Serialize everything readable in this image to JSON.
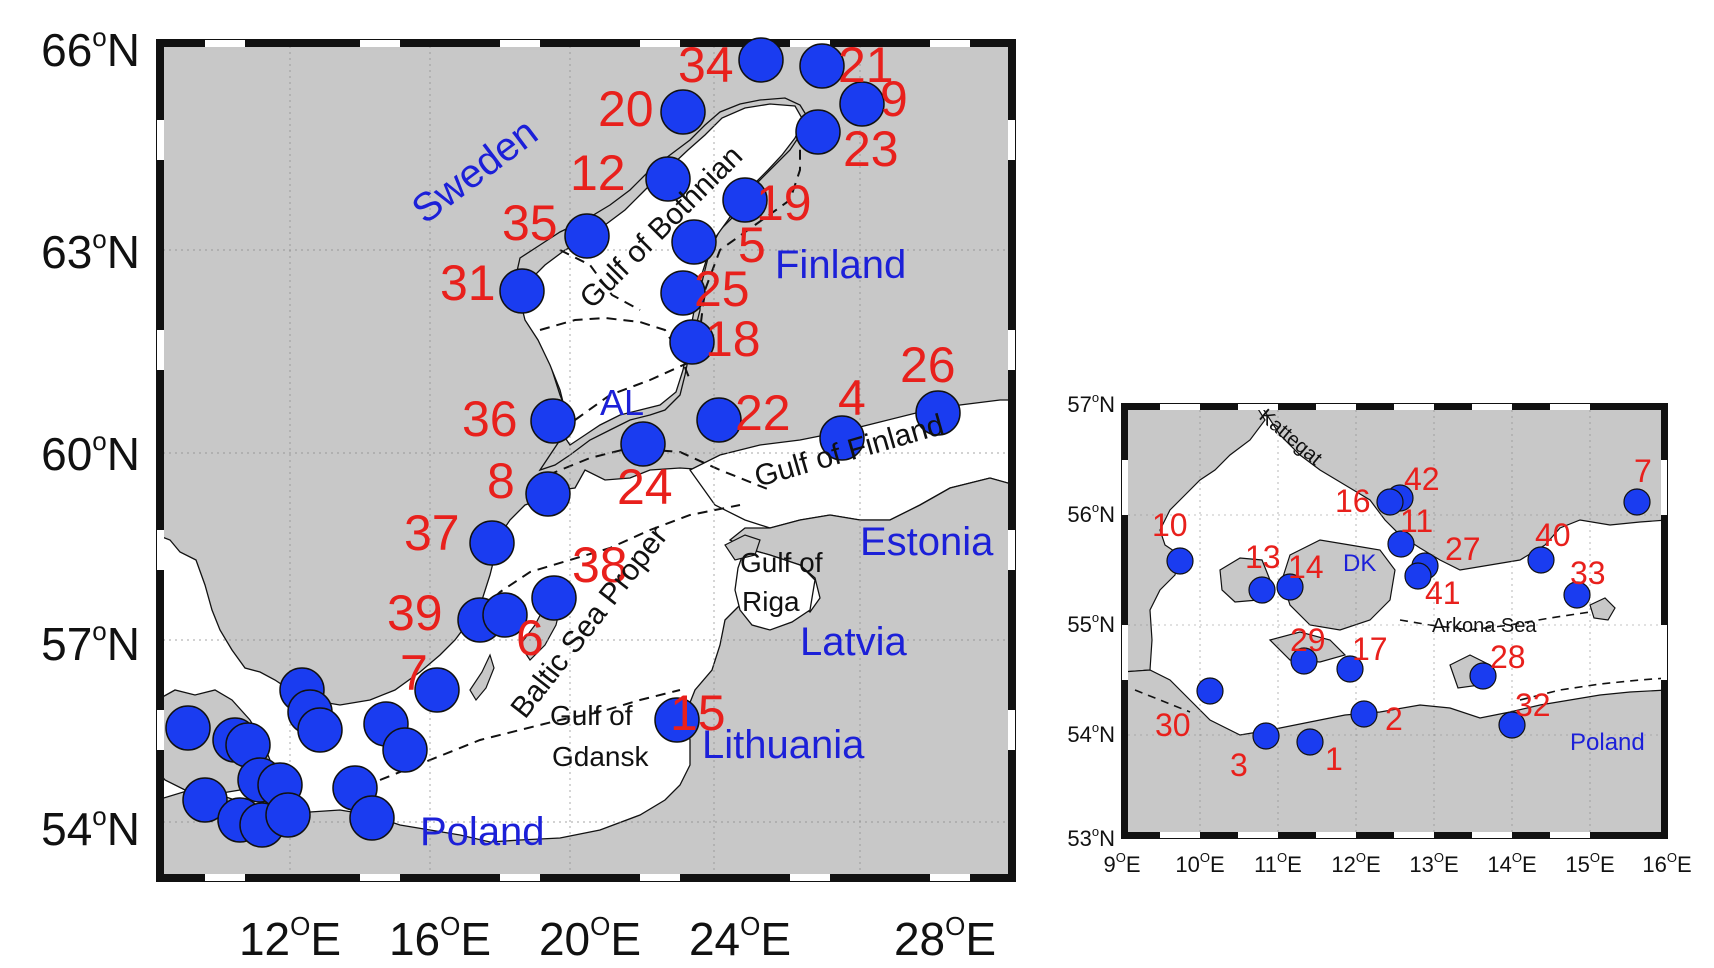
{
  "colors": {
    "land": "#c8c8c8",
    "sea": "#ffffff",
    "station": "#1a3cf0",
    "station_label": "#e8201c",
    "country_label": "#1c20d8",
    "sea_label": "#111111"
  },
  "left_map": {
    "lat_ticks": [
      {
        "deg": "66",
        "hem": "N"
      },
      {
        "deg": "63",
        "hem": "N"
      },
      {
        "deg": "60",
        "hem": "N"
      },
      {
        "deg": "57",
        "hem": "N"
      },
      {
        "deg": "54",
        "hem": "N"
      }
    ],
    "lon_ticks": [
      {
        "deg": "12",
        "hem": "E"
      },
      {
        "deg": "16",
        "hem": "E"
      },
      {
        "deg": "20",
        "hem": "E"
      },
      {
        "deg": "24",
        "hem": "E"
      },
      {
        "deg": "28",
        "hem": "E"
      }
    ],
    "country_labels": [
      "Sweden",
      "Finland",
      "AL",
      "Estonia",
      "Latvia",
      "Lithuania",
      "Poland"
    ],
    "sea_labels": [
      "Gulf of Bothnian",
      "Gulf of Finland",
      "Baltic Sea Proper",
      "Gulf of",
      "Riga",
      "Gulf of",
      "Gdansk"
    ],
    "stations": [
      "34",
      "21",
      "9",
      "20",
      "23",
      "12",
      "19",
      "35",
      "5",
      "31",
      "25",
      "18",
      "26",
      "36",
      "22",
      "4",
      "8",
      "24",
      "37",
      "38",
      "39",
      "6",
      "7",
      "15"
    ]
  },
  "right_map": {
    "lat_ticks": [
      {
        "deg": "57",
        "hem": "N"
      },
      {
        "deg": "56",
        "hem": "N"
      },
      {
        "deg": "55",
        "hem": "N"
      },
      {
        "deg": "54",
        "hem": "N"
      },
      {
        "deg": "53",
        "hem": "N"
      }
    ],
    "lon_ticks": [
      {
        "deg": "9",
        "hem": "E"
      },
      {
        "deg": "10",
        "hem": "E"
      },
      {
        "deg": "11",
        "hem": "E"
      },
      {
        "deg": "12",
        "hem": "E"
      },
      {
        "deg": "13",
        "hem": "E"
      },
      {
        "deg": "14",
        "hem": "E"
      },
      {
        "deg": "15",
        "hem": "E"
      },
      {
        "deg": "16",
        "hem": "E"
      }
    ],
    "country_labels": [
      "DK",
      "Poland"
    ],
    "sea_labels": [
      "Kattegat",
      "Arkona Sea"
    ],
    "stations": [
      "42",
      "7",
      "16",
      "11",
      "10",
      "40",
      "13",
      "14",
      "27",
      "33",
      "41",
      "29",
      "17",
      "28",
      "30",
      "2",
      "32",
      "3",
      "1"
    ]
  }
}
